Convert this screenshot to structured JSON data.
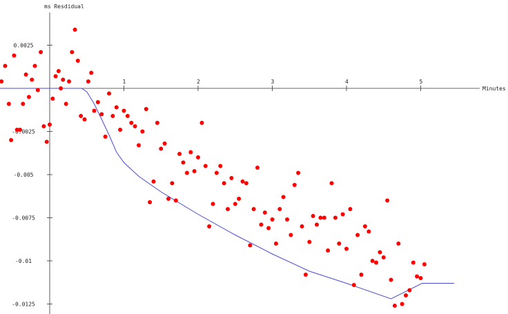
{
  "chart_data": {
    "type": "scatter",
    "title": "",
    "xlabel": "Minutes",
    "ylabel": "ms Resdidual",
    "xlim": [
      -0.67,
      5.55
    ],
    "ylim": [
      -0.0135,
      0.0043
    ],
    "x_ticks": [
      1,
      2,
      3,
      4,
      5
    ],
    "x_tick_labels": [
      "1",
      "2",
      "3",
      "4",
      "5"
    ],
    "y_ticks": [
      0.0025,
      -0.0025,
      -0.005,
      -0.0075,
      -0.01,
      -0.0125
    ],
    "y_tick_labels": [
      "0.0025",
      "-0.0025",
      "-0.005",
      "-0.0075",
      "-0.01",
      "-0.0125"
    ],
    "grid": false,
    "legend": "none",
    "point_color": "#ff0000",
    "line_color": "#4a4ad6",
    "points": [
      [
        -0.65,
        0.0004
      ],
      [
        -0.6,
        0.0013
      ],
      [
        -0.55,
        -0.0009
      ],
      [
        -0.52,
        -0.003
      ],
      [
        -0.48,
        0.0019
      ],
      [
        -0.44,
        -0.0024
      ],
      [
        -0.4,
        -0.0024
      ],
      [
        -0.36,
        -0.0009
      ],
      [
        -0.32,
        0.0008
      ],
      [
        -0.28,
        -0.0005
      ],
      [
        -0.24,
        0.0005
      ],
      [
        -0.2,
        0.0013
      ],
      [
        -0.16,
        -0.0001
      ],
      [
        -0.12,
        0.0021
      ],
      [
        -0.08,
        -0.0022
      ],
      [
        -0.04,
        -0.0031
      ],
      [
        0.0,
        -0.0021
      ],
      [
        0.04,
        -0.0006
      ],
      [
        0.08,
        0.0007
      ],
      [
        0.12,
        0.001
      ],
      [
        0.15,
        0.0
      ],
      [
        0.18,
        0.0005
      ],
      [
        0.22,
        -0.0009
      ],
      [
        0.26,
        0.0004
      ],
      [
        0.3,
        0.0021
      ],
      [
        0.34,
        0.0034
      ],
      [
        0.38,
        0.0016
      ],
      [
        0.42,
        -0.0016
      ],
      [
        0.47,
        -0.0018
      ],
      [
        0.52,
        0.0004
      ],
      [
        0.56,
        0.0009
      ],
      [
        0.6,
        -0.0013
      ],
      [
        0.65,
        -0.0008
      ],
      [
        0.7,
        -0.0015
      ],
      [
        0.75,
        -0.0028
      ],
      [
        0.8,
        -0.0003
      ],
      [
        0.85,
        -0.0016
      ],
      [
        0.9,
        -0.0011
      ],
      [
        0.95,
        -0.0024
      ],
      [
        1.0,
        -0.0013
      ],
      [
        1.05,
        -0.0016
      ],
      [
        1.1,
        -0.002
      ],
      [
        1.15,
        -0.0022
      ],
      [
        1.2,
        -0.0033
      ],
      [
        1.25,
        -0.0025
      ],
      [
        1.3,
        -0.0012
      ],
      [
        1.35,
        -0.0066
      ],
      [
        1.4,
        -0.0054
      ],
      [
        1.45,
        -0.002
      ],
      [
        1.5,
        -0.0035
      ],
      [
        1.55,
        -0.0032
      ],
      [
        1.6,
        -0.0064
      ],
      [
        1.65,
        -0.0055
      ],
      [
        1.7,
        -0.0065
      ],
      [
        1.75,
        -0.0038
      ],
      [
        1.8,
        -0.0043
      ],
      [
        1.85,
        -0.0049
      ],
      [
        1.9,
        -0.0037
      ],
      [
        1.95,
        -0.0048
      ],
      [
        2.0,
        -0.004
      ],
      [
        2.05,
        -0.002
      ],
      [
        2.1,
        -0.0045
      ],
      [
        2.15,
        -0.008
      ],
      [
        2.2,
        -0.0067
      ],
      [
        2.25,
        -0.0049
      ],
      [
        2.3,
        -0.0045
      ],
      [
        2.35,
        -0.0055
      ],
      [
        2.4,
        -0.007
      ],
      [
        2.45,
        -0.0052
      ],
      [
        2.5,
        -0.0067
      ],
      [
        2.55,
        -0.0064
      ],
      [
        2.6,
        -0.0054
      ],
      [
        2.65,
        -0.0055
      ],
      [
        2.7,
        -0.0091
      ],
      [
        2.75,
        -0.007
      ],
      [
        2.8,
        -0.0046
      ],
      [
        2.85,
        -0.0079
      ],
      [
        2.9,
        -0.0072
      ],
      [
        2.95,
        -0.0081
      ],
      [
        3.0,
        -0.0076
      ],
      [
        3.05,
        -0.009
      ],
      [
        3.1,
        -0.007
      ],
      [
        3.15,
        -0.0063
      ],
      [
        3.2,
        -0.0076
      ],
      [
        3.25,
        -0.0085
      ],
      [
        3.3,
        -0.0056
      ],
      [
        3.35,
        -0.0049
      ],
      [
        3.4,
        -0.008
      ],
      [
        3.45,
        -0.0108
      ],
      [
        3.5,
        -0.0089
      ],
      [
        3.55,
        -0.0074
      ],
      [
        3.6,
        -0.0079
      ],
      [
        3.65,
        -0.0075
      ],
      [
        3.7,
        -0.0075
      ],
      [
        3.75,
        -0.0094
      ],
      [
        3.8,
        -0.0055
      ],
      [
        3.85,
        -0.0075
      ],
      [
        3.9,
        -0.009
      ],
      [
        3.95,
        -0.0073
      ],
      [
        4.0,
        -0.0093
      ],
      [
        4.05,
        -0.007
      ],
      [
        4.1,
        -0.0114
      ],
      [
        4.15,
        -0.0085
      ],
      [
        4.2,
        -0.0108
      ],
      [
        4.25,
        -0.008
      ],
      [
        4.3,
        -0.0083
      ],
      [
        4.35,
        -0.01
      ],
      [
        4.4,
        -0.0101
      ],
      [
        4.45,
        -0.0095
      ],
      [
        4.5,
        -0.0098
      ],
      [
        4.55,
        -0.0065
      ],
      [
        4.6,
        -0.0111
      ],
      [
        4.65,
        -0.0126
      ],
      [
        4.7,
        -0.009
      ],
      [
        4.75,
        -0.0125
      ],
      [
        4.8,
        -0.012
      ],
      [
        4.85,
        -0.0117
      ],
      [
        4.9,
        -0.0101
      ],
      [
        4.95,
        -0.0109
      ],
      [
        5.0,
        -0.011
      ],
      [
        5.05,
        -0.0102
      ]
    ],
    "fit_line": [
      [
        -0.67,
        0.0
      ],
      [
        0.43,
        0.0
      ],
      [
        0.5,
        -0.0002
      ],
      [
        0.6,
        -0.0009
      ],
      [
        0.7,
        -0.0018
      ],
      [
        0.8,
        -0.0027
      ],
      [
        0.9,
        -0.0037
      ],
      [
        1.0,
        -0.0043
      ],
      [
        1.2,
        -0.0051
      ],
      [
        1.5,
        -0.006
      ],
      [
        2.0,
        -0.0073
      ],
      [
        2.5,
        -0.0085
      ],
      [
        3.0,
        -0.0096
      ],
      [
        3.5,
        -0.0106
      ],
      [
        4.0,
        -0.0113
      ],
      [
        4.6,
        -0.0122
      ],
      [
        5.02,
        -0.0113
      ],
      [
        5.45,
        -0.0113
      ]
    ]
  }
}
